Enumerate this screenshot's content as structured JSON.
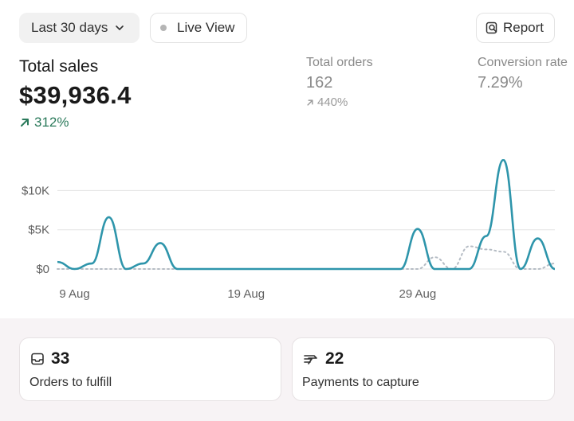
{
  "toolbar": {
    "date_range_label": "Last 30 days",
    "live_view_label": "Live View",
    "report_label": "Report"
  },
  "metrics": {
    "total_sales": {
      "label": "Total sales",
      "value": "$39,936.4",
      "change": "312%"
    },
    "total_orders": {
      "label": "Total orders",
      "value": "162",
      "change": "440%"
    },
    "conversion_rate": {
      "label": "Conversion rate",
      "value": "7.29%"
    }
  },
  "chart_data": {
    "type": "line",
    "title": "",
    "xlabel": "",
    "ylabel": "",
    "x_ticks": [
      "9 Aug",
      "19 Aug",
      "29 Aug"
    ],
    "y_ticks": [
      "$0",
      "$5K",
      "$10K"
    ],
    "ylim": [
      0,
      14000
    ],
    "grid": true,
    "colors": {
      "current": "#2e95ab",
      "previous": "#b5bcc4",
      "grid": "#e3e3e3"
    },
    "x": [
      "8 Aug",
      "9 Aug",
      "10 Aug",
      "11 Aug",
      "12 Aug",
      "13 Aug",
      "14 Aug",
      "15 Aug",
      "16 Aug",
      "17 Aug",
      "18 Aug",
      "19 Aug",
      "20 Aug",
      "21 Aug",
      "22 Aug",
      "23 Aug",
      "24 Aug",
      "25 Aug",
      "26 Aug",
      "27 Aug",
      "28 Aug",
      "29 Aug",
      "30 Aug",
      "31 Aug",
      "1 Sep",
      "2 Sep",
      "3 Sep",
      "4 Sep",
      "5 Sep",
      "6 Sep"
    ],
    "series": [
      {
        "values": [
          900,
          0,
          700,
          6600,
          0,
          700,
          3300,
          0,
          0,
          0,
          0,
          0,
          0,
          0,
          0,
          0,
          0,
          0,
          0,
          0,
          0,
          5100,
          0,
          0,
          0,
          4200,
          13900,
          0,
          3900,
          0
        ]
      },
      {
        "values": [
          0,
          0,
          0,
          0,
          0,
          0,
          0,
          0,
          0,
          0,
          0,
          0,
          0,
          0,
          0,
          0,
          0,
          0,
          0,
          0,
          0,
          0,
          1500,
          0,
          2900,
          2500,
          2200,
          0,
          0,
          700
        ]
      }
    ]
  },
  "tasks": {
    "fulfill": {
      "count": "33",
      "label": "Orders to fulfill"
    },
    "capture": {
      "count": "22",
      "label": "Payments to capture"
    }
  }
}
